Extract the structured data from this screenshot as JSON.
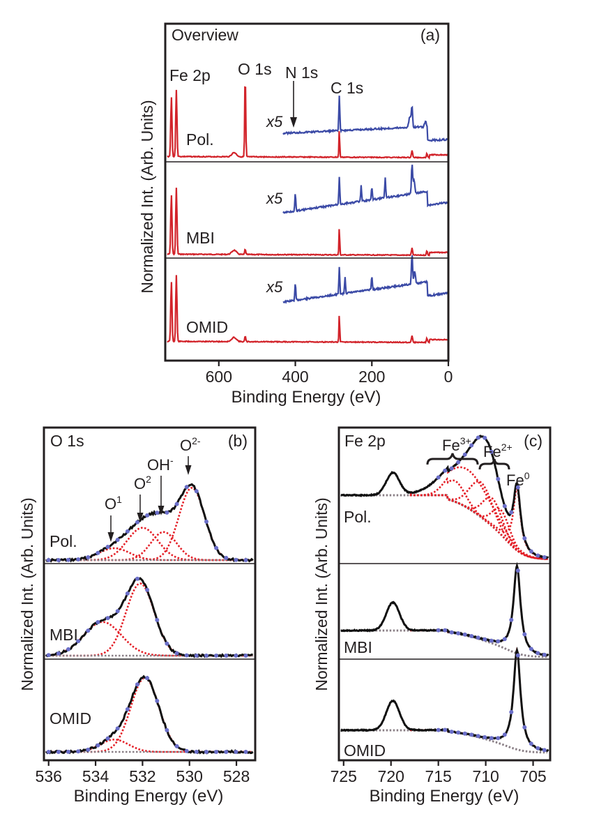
{
  "colors": {
    "axis": "#231f20",
    "red": "#d2232a",
    "blue": "#3b4aa6",
    "black": "#111111",
    "fitred": "#e41e26",
    "background": "#8a7f86",
    "dot": "#6b6fc9"
  },
  "chart_data": [
    {
      "id": "a",
      "type": "line",
      "title": "Overview",
      "panel_label": "(a)",
      "xlabel": "Binding Energy (eV)",
      "ylabel": "Normalized Int. (Arb. Units)",
      "xlim": [
        740,
        0
      ],
      "x_reversed": true,
      "xticks": [
        600,
        400,
        200,
        0
      ],
      "peak_labels": [
        {
          "text": "Fe 2p",
          "x": 710
        },
        {
          "text": "O 1s",
          "x": 531
        },
        {
          "text": "N 1s",
          "x": 400
        },
        {
          "text": "C 1s",
          "x": 285
        }
      ],
      "scale_label": "x5",
      "series": [
        {
          "name": "Pol.",
          "color": "red"
        },
        {
          "name": "Pol. x5",
          "color": "blue"
        },
        {
          "name": "MBI",
          "color": "red"
        },
        {
          "name": "MBI x5",
          "color": "blue"
        },
        {
          "name": "OMID",
          "color": "red"
        },
        {
          "name": "OMID x5",
          "color": "blue"
        }
      ]
    },
    {
      "id": "b",
      "type": "line",
      "title": "O 1s",
      "panel_label": "(b)",
      "xlabel": "Binding Energy (eV)",
      "ylabel": "Normalized Int. (Arb. Units)",
      "xlim": [
        536.2,
        527.2
      ],
      "x_reversed": true,
      "xticks": [
        536,
        534,
        532,
        530,
        528
      ],
      "components": [
        {
          "label": "O",
          "sup": "1",
          "center": 533.2
        },
        {
          "label": "O",
          "sup": "2",
          "center": 532.0
        },
        {
          "label": "OH",
          "sup": "-",
          "center": 531.1
        },
        {
          "label": "O",
          "sup": "2-",
          "center": 529.9
        }
      ],
      "series": [
        {
          "name": "Pol.",
          "peaks": [
            [
              529.9,
              0.85,
              0.55
            ],
            [
              531.1,
              0.33,
              0.55
            ],
            [
              532.0,
              0.38,
              0.65
            ],
            [
              533.2,
              0.14,
              0.65
            ]
          ]
        },
        {
          "name": "MBI",
          "peaks": [
            [
              532.1,
              0.9,
              0.6
            ],
            [
              533.7,
              0.42,
              0.8
            ]
          ]
        },
        {
          "name": "OMID",
          "peaks": [
            [
              531.9,
              0.9,
              0.6
            ],
            [
              533.2,
              0.15,
              0.6
            ]
          ]
        }
      ]
    },
    {
      "id": "c",
      "type": "line",
      "title": "Fe 2p",
      "panel_label": "(c)",
      "xlabel": "Binding Energy (eV)",
      "ylabel": "Normalized Int. (Arb. Units)",
      "xlim": [
        725.5,
        703.2
      ],
      "x_reversed": true,
      "xticks": [
        725,
        720,
        715,
        710,
        705
      ],
      "species": [
        {
          "label": "Fe",
          "sup": "3+",
          "range": [
            714.5,
            711
          ]
        },
        {
          "label": "Fe",
          "sup": "2+",
          "range": [
            710,
            707.8
          ]
        },
        {
          "label": "Fe",
          "sup": "0",
          "range": [
            706.7,
            706.7
          ]
        }
      ],
      "series": [
        {
          "name": "Pol."
        },
        {
          "name": "MBI"
        },
        {
          "name": "OMID"
        }
      ]
    }
  ]
}
